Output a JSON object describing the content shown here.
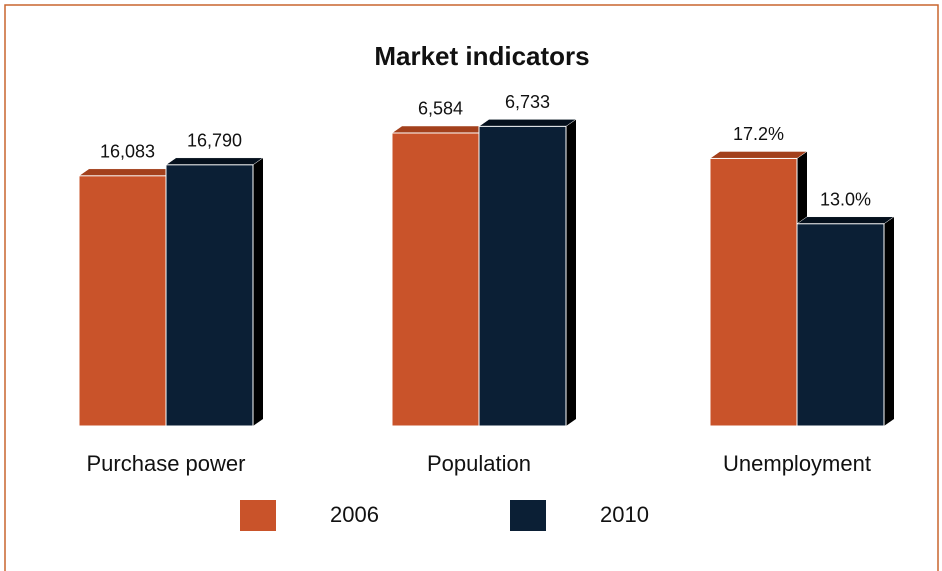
{
  "chart_data": {
    "type": "bar",
    "title": "Market indicators",
    "categories": [
      "Purchase power",
      "Population",
      "Unemployment"
    ],
    "group_ylims": [
      [
        0,
        21600
      ],
      [
        0,
        7550
      ],
      [
        0,
        21.6
      ]
    ],
    "series": [
      {
        "name": "2006",
        "color": "#c9532a",
        "values": [
          16083,
          6584,
          17.2
        ],
        "value_labels": [
          "16,083",
          "6,584",
          "17.2%"
        ]
      },
      {
        "name": "2010",
        "color": "#0b1f35",
        "values": [
          16790,
          6733,
          13.0
        ],
        "value_labels": [
          "16,790",
          "6,733",
          "13.0%"
        ]
      }
    ]
  }
}
